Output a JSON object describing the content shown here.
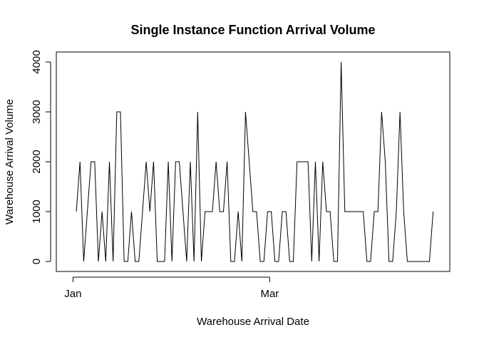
{
  "chart_data": {
    "type": "line",
    "title": "Single Instance Function Arrival Volume",
    "xlabel": "Warehouse Arrival Date",
    "ylabel": "Warehouse Arrival Volume",
    "x_start": "2019-01-02",
    "x_end": "2019-04-19",
    "xlim": [
      "2018-12-27",
      "2019-04-24"
    ],
    "ylim": [
      -200,
      4200
    ],
    "x_ticks": [
      {
        "date": "2019-01-01",
        "label": "Jan"
      },
      {
        "date": "2019-03-01",
        "label": "Mar"
      }
    ],
    "y_ticks": [
      0,
      1000,
      2000,
      3000,
      4000
    ],
    "series": [
      {
        "color": "#000000",
        "values": [
          1000,
          2000,
          0,
          1000,
          2000,
          2000,
          0,
          1000,
          0,
          2000,
          0,
          3000,
          3000,
          0,
          0,
          1000,
          0,
          0,
          1000,
          2000,
          1000,
          2000,
          0,
          0,
          0,
          2000,
          0,
          2000,
          2000,
          1000,
          0,
          2000,
          0,
          3000,
          0,
          1000,
          1000,
          1000,
          2000,
          1000,
          1000,
          2000,
          0,
          0,
          1000,
          0,
          3000,
          2000,
          1000,
          1000,
          0,
          0,
          1000,
          1000,
          0,
          0,
          1000,
          1000,
          0,
          0,
          2000,
          2000,
          2000,
          2000,
          0,
          2000,
          0,
          2000,
          1000,
          1000,
          0,
          0,
          4000,
          1000,
          1000,
          1000,
          1000,
          1000,
          1000,
          0,
          0,
          1000,
          1000,
          3000,
          2000,
          0,
          0,
          1000,
          3000,
          1000,
          0,
          0,
          0,
          0,
          0,
          0,
          0,
          1000
        ]
      }
    ]
  }
}
